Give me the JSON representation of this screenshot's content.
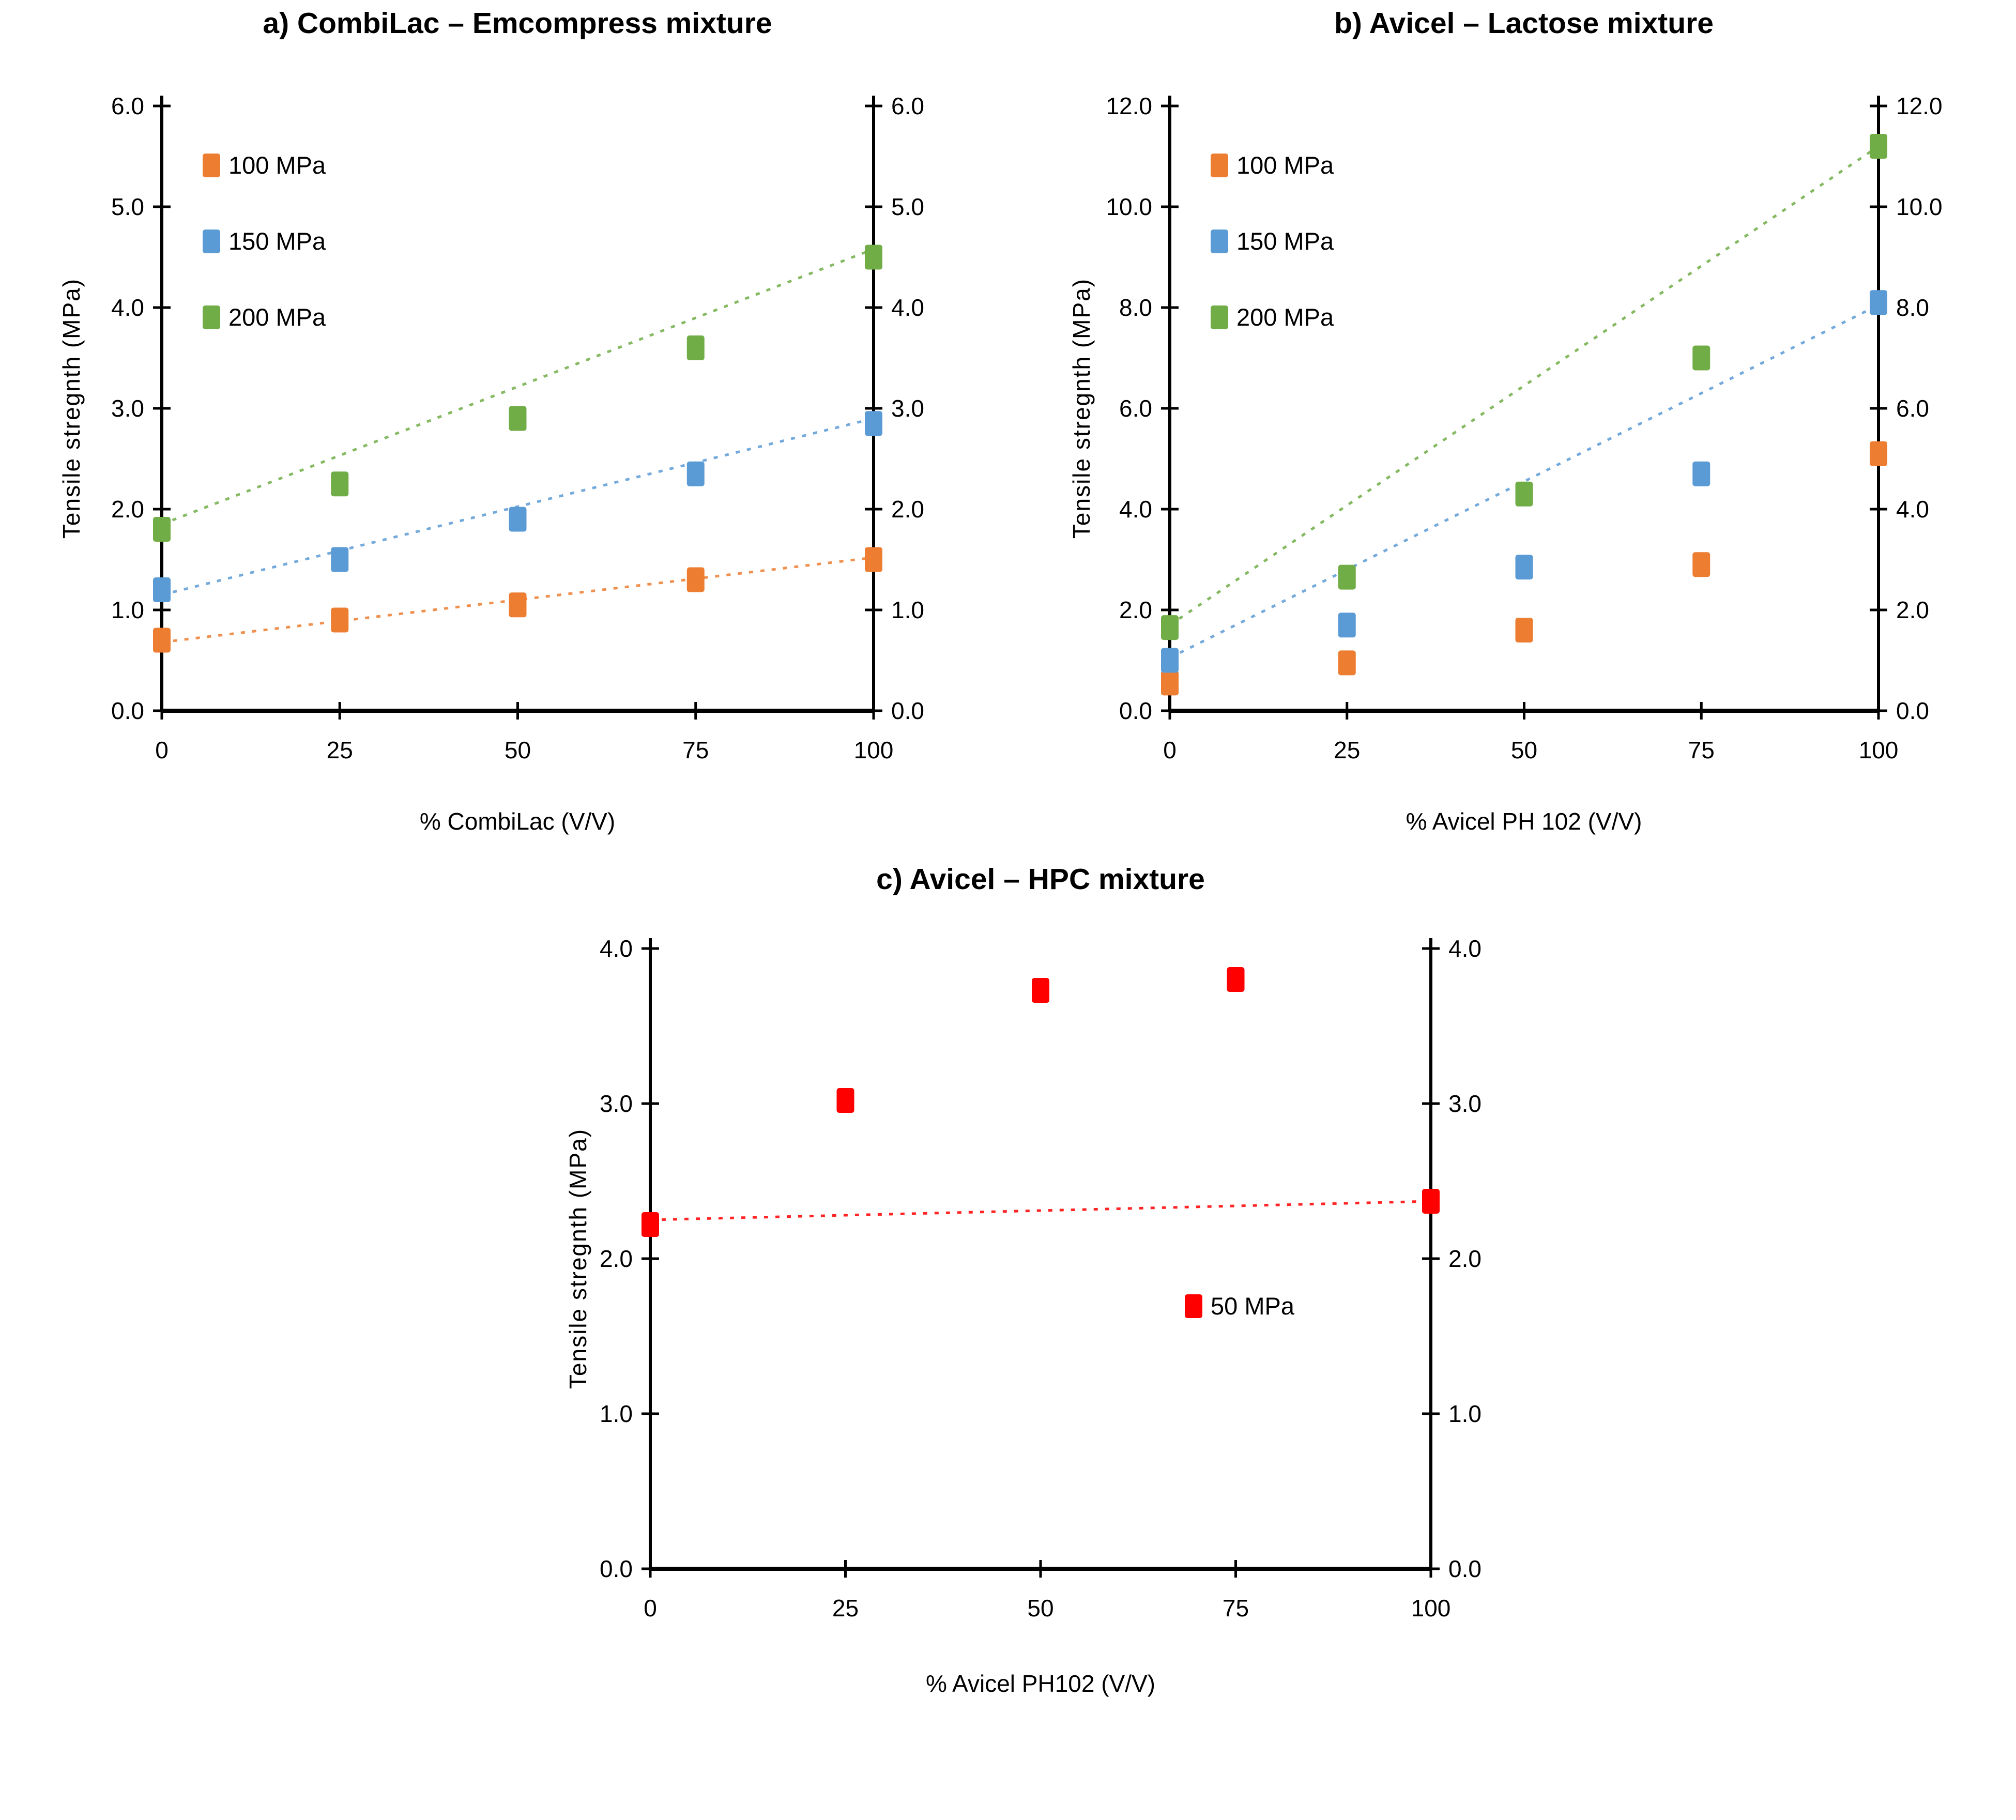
{
  "page": {
    "background": "#ffffff",
    "text_color": "#000000",
    "axis_color": "#000000"
  },
  "chart_data": [
    {
      "panel": "a",
      "type": "scatter",
      "title": "a) CombiLac – Emcompress mixture",
      "xlabel": "% CombiLac (V/V)",
      "ylabel": "Tensile stregnth (MPa)",
      "x": [
        0,
        25,
        50,
        75,
        100
      ],
      "xlim": [
        0,
        100
      ],
      "ylim": [
        0.0,
        6.0
      ],
      "ytick_step": 1.0,
      "tick_decimals": 1,
      "grid": false,
      "dual_y_labels": true,
      "legend_position": "inside-top-left",
      "series": [
        {
          "name": "100 MPa",
          "color": "#ED7D31",
          "values": [
            0.7,
            0.9,
            1.05,
            1.3,
            1.5
          ],
          "trend": [
            0.68,
            1.52
          ]
        },
        {
          "name": "150 MPa",
          "color": "#5B9BD5",
          "values": [
            1.2,
            1.5,
            1.9,
            2.35,
            2.85
          ],
          "trend": [
            1.15,
            2.9
          ]
        },
        {
          "name": "200 MPa",
          "color": "#70AD47",
          "values": [
            1.8,
            2.25,
            2.9,
            3.6,
            4.5
          ],
          "trend": [
            1.85,
            4.58
          ]
        }
      ]
    },
    {
      "panel": "b",
      "type": "scatter",
      "title": "b) Avicel – Lactose mixture",
      "xlabel": "% Avicel PH 102 (V/V)",
      "ylabel": "Tensile stregnth (MPa)",
      "x": [
        0,
        25,
        50,
        75,
        100
      ],
      "xlim": [
        0,
        100
      ],
      "ylim": [
        0.0,
        12.0
      ],
      "ytick_step": 2.0,
      "tick_decimals": 1,
      "grid": false,
      "dual_y_labels": true,
      "legend_position": "inside-top-left",
      "series": [
        {
          "name": "100 MPa",
          "color": "#ED7D31",
          "values": [
            0.55,
            0.95,
            1.6,
            2.9,
            5.1
          ],
          "trend": null
        },
        {
          "name": "150 MPa",
          "color": "#5B9BD5",
          "values": [
            1.0,
            1.7,
            2.85,
            4.7,
            8.1
          ],
          "trend": [
            1.05,
            8.05
          ]
        },
        {
          "name": "200 MPa",
          "color": "#70AD47",
          "values": [
            1.65,
            2.65,
            4.3,
            7.0,
            11.2
          ],
          "trend": [
            1.7,
            11.2
          ]
        }
      ]
    },
    {
      "panel": "c",
      "type": "scatter",
      "title": "c) Avicel – HPC mixture",
      "xlabel": "% Avicel PH102  (V/V)",
      "ylabel": "Tensile stregnth (MPa)",
      "x": [
        0,
        25,
        50,
        75,
        100
      ],
      "xlim": [
        0,
        100
      ],
      "ylim": [
        0.0,
        4.0
      ],
      "ytick_step": 1.0,
      "tick_decimals": 1,
      "grid": false,
      "dual_y_labels": true,
      "legend_position": "inside-right-middle",
      "series": [
        {
          "name": "50 MPa",
          "color": "#FF0000",
          "values": [
            2.22,
            3.02,
            3.73,
            3.8,
            2.37
          ],
          "trend": [
            2.25,
            2.37
          ]
        }
      ]
    }
  ]
}
